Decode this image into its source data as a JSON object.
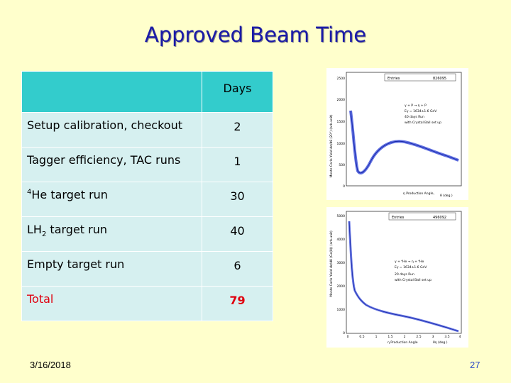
{
  "slide": {
    "title": "Approved Beam Time",
    "footer_date": "3/16/2018",
    "page_number": "27"
  },
  "table": {
    "header_days": "Days",
    "rows": [
      {
        "label": "Setup calibration, checkout",
        "days": "2"
      },
      {
        "label": "Tagger efficiency, TAC runs",
        "days": "1"
      },
      {
        "label_sup": "4",
        "label": "He target run",
        "days": "30"
      },
      {
        "label_pre": "LH",
        "label_sub": "2",
        "label": " target run",
        "days": "40"
      },
      {
        "label": "Empty target run",
        "days": "6"
      },
      {
        "label": "Total",
        "days": "79"
      }
    ]
  },
  "colors": {
    "background": "#ffffcc",
    "title": "#1a1aa8",
    "header_cell": "#33cccc",
    "body_cell": "#d6f0f0",
    "total": "#e0000f",
    "histogram": "#2a3fd8"
  },
  "plots": [
    {
      "entries_label": "Entries",
      "entries_value": "826095",
      "y_label": "Monte Carlo Yield  dσ/dθ  (20°) (arb.unit)",
      "x_label": "η Production Angle,",
      "x_unit": "θ (deg.)",
      "legend": [
        "γ + P → η + P",
        "Eγ = 1634±1.6 GeV",
        "40 days Run",
        "with Crystal Ball set up"
      ],
      "y_ticks": [
        "2500",
        "2000",
        "1500",
        "1000",
        "500",
        "0"
      ]
    },
    {
      "entries_label": "Entries",
      "entries_value": "496092",
      "y_label": "Monte Carlo Yield  dσ/dθ (Ge(θ)) (arb.unit)",
      "x_label": "η Production Angle",
      "x_unit": "θη (deg.)",
      "legend": [
        "γ + ⁴He → η + ⁴He",
        "Eγ = 1634±1.6 GeV",
        "20 days Run",
        "with Crystal Ball set up"
      ],
      "y_ticks": [
        "5000",
        "4000",
        "3000",
        "2000",
        "1000",
        "0"
      ],
      "x_ticks": [
        "0",
        "0.5",
        "1",
        "1.5",
        "2",
        "2.5",
        "3",
        "3.5",
        "4"
      ]
    }
  ]
}
